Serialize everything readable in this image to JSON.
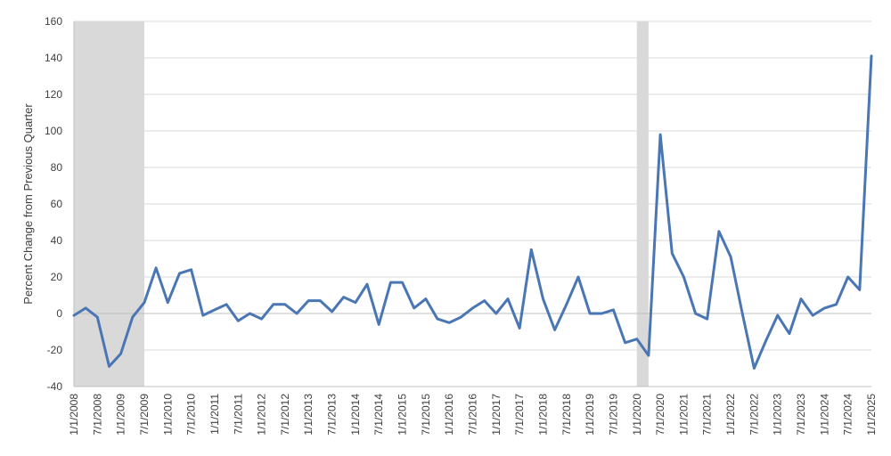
{
  "chart_data": {
    "type": "line",
    "title": "",
    "xlabel": "",
    "ylabel": "Percent Change from Previous Quarter",
    "ylim": [
      -40,
      160
    ],
    "yticks": [
      -40,
      -20,
      0,
      20,
      40,
      60,
      80,
      100,
      120,
      140,
      160
    ],
    "grid": "horizontal",
    "legend": "none",
    "line_color": "#4a76b4",
    "shade_color": "#d9d9d9",
    "grid_color": "#d9d9d9",
    "x": [
      "1/1/2008",
      "4/1/2008",
      "7/1/2008",
      "10/1/2008",
      "1/1/2009",
      "4/1/2009",
      "7/1/2009",
      "10/1/2009",
      "1/1/2010",
      "4/1/2010",
      "7/1/2010",
      "10/1/2010",
      "1/1/2011",
      "4/1/2011",
      "7/1/2011",
      "10/1/2011",
      "1/1/2012",
      "4/1/2012",
      "7/1/2012",
      "10/1/2012",
      "1/1/2013",
      "4/1/2013",
      "7/1/2013",
      "10/1/2013",
      "1/1/2014",
      "4/1/2014",
      "7/1/2014",
      "10/1/2014",
      "1/1/2015",
      "4/1/2015",
      "7/1/2015",
      "10/1/2015",
      "1/1/2016",
      "4/1/2016",
      "7/1/2016",
      "10/1/2016",
      "1/1/2017",
      "4/1/2017",
      "7/1/2017",
      "10/1/2017",
      "1/1/2018",
      "4/1/2018",
      "7/1/2018",
      "10/1/2018",
      "1/1/2019",
      "4/1/2019",
      "7/1/2019",
      "10/1/2019",
      "1/1/2020",
      "4/1/2020",
      "7/1/2020",
      "10/1/2020",
      "1/1/2021",
      "4/1/2021",
      "7/1/2021",
      "10/1/2021",
      "1/1/2022",
      "4/1/2022",
      "7/1/2022",
      "10/1/2022",
      "1/1/2023",
      "4/1/2023",
      "7/1/2023",
      "10/1/2023",
      "1/1/2024",
      "4/1/2024",
      "7/1/2024",
      "10/1/2024",
      "1/1/2025"
    ],
    "x_tick_labels": [
      "1/1/2008",
      "7/1/2008",
      "1/1/2009",
      "7/1/2009",
      "1/1/2010",
      "7/1/2010",
      "1/1/2011",
      "7/1/2011",
      "1/1/2012",
      "7/1/2012",
      "1/1/2013",
      "7/1/2013",
      "1/1/2014",
      "7/1/2014",
      "1/1/2015",
      "7/1/2015",
      "1/1/2016",
      "7/1/2016",
      "1/1/2017",
      "7/1/2017",
      "1/1/2018",
      "7/1/2018",
      "1/1/2019",
      "7/1/2019",
      "1/1/2020",
      "7/1/2020",
      "1/1/2021",
      "7/1/2021",
      "1/1/2022",
      "7/1/2022",
      "1/1/2023",
      "7/1/2023",
      "1/1/2024",
      "7/1/2024",
      "1/1/2025"
    ],
    "series": [
      {
        "values": [
          -1,
          3,
          -2,
          -29,
          -22,
          -2,
          6,
          25,
          6,
          22,
          24,
          -1,
          2,
          5,
          -4,
          0,
          -3,
          5,
          5,
          0,
          7,
          7,
          1,
          9,
          6,
          16,
          -6,
          17,
          17,
          3,
          8,
          -3,
          -5,
          -2,
          3,
          7,
          0,
          8,
          -8,
          35,
          8,
          -9,
          5,
          20,
          0,
          0,
          2,
          -16,
          -14,
          -23,
          98,
          33,
          20,
          0,
          -3,
          45,
          31,
          0,
          -30,
          -15,
          -1,
          -11,
          8,
          -1,
          3,
          5,
          20,
          13,
          141
        ]
      }
    ],
    "shaded_periods": [
      {
        "start": "1/1/2008",
        "end": "7/1/2009"
      },
      {
        "start": "1/1/2020",
        "end": "4/1/2020"
      }
    ]
  }
}
